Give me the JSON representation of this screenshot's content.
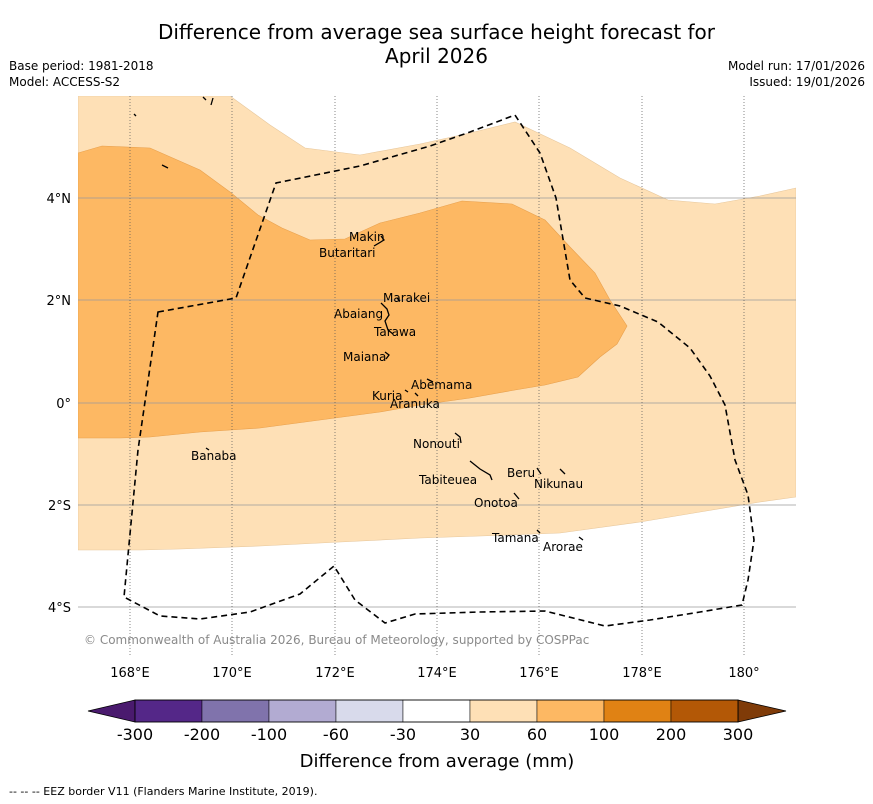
{
  "title_line1": "Difference from average sea surface height forecast for",
  "title_line2": "April 2026",
  "meta_left": {
    "base_period": "Base period: 1981-2018",
    "model": "Model: ACCESS-S2"
  },
  "meta_right": {
    "model_run": "Model run: 17/01/2026",
    "issued": "Issued: 19/01/2026"
  },
  "map": {
    "lon_labels": [
      "168°E",
      "170°E",
      "172°E",
      "174°E",
      "176°E",
      "178°E",
      "180°"
    ],
    "lat_labels": [
      "4°N",
      "2°N",
      "0°",
      "2°S",
      "4°S"
    ],
    "copyright": "© Commonwealth of Australia 2026, Bureau of Meteorology, supported by COSPPac",
    "islands": [
      "Makin",
      "Butaritari",
      "Marakei",
      "Abaiang",
      "Tarawa",
      "Maiana",
      "Abemama",
      "Kuria",
      "Aranuka",
      "Banaba",
      "Nonouti",
      "Tabiteuea",
      "Beru",
      "Nikunau",
      "Onotoa",
      "Tamana",
      "Arorae"
    ]
  },
  "colorbar": {
    "title": "Difference from average (mm)",
    "tick_labels": [
      "-300",
      "-200",
      "-100",
      "-60",
      "-30",
      "30",
      "60",
      "100",
      "200",
      "300"
    ],
    "colors": [
      "#4a1a6e",
      "#542788",
      "#8073ac",
      "#b2abd2",
      "#d8daeb",
      "#ffffff",
      "#fee0b6",
      "#fdb863",
      "#e08214",
      "#b35806",
      "#7f3b08"
    ]
  },
  "chart_data": {
    "type": "map",
    "variable": "Sea surface height anomaly (mm)",
    "regions": [
      {
        "band": "30 to 60 mm",
        "color": "#fee0b6",
        "extent": "most of the domain, roughly 3°S to 6°N"
      },
      {
        "band": "60 to 100 mm",
        "color": "#fdb863",
        "extent": "west and central, roughly 0.7°S to 4°N"
      }
    ]
  },
  "footer": "--  --  -- EEZ border V11 (Flanders Marine Institute, 2019)."
}
